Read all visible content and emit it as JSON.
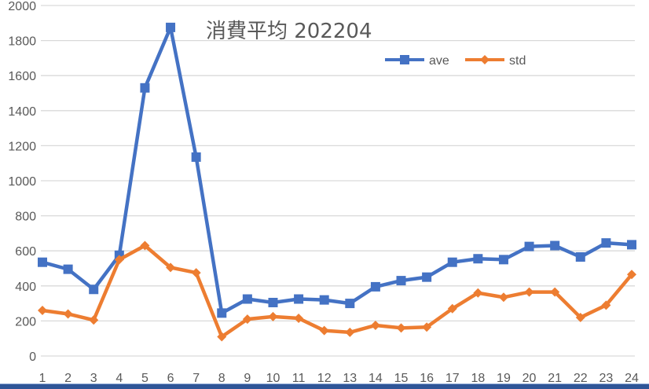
{
  "chart_data": {
    "type": "line",
    "title": "消費平均 202204",
    "xlabel": "",
    "ylabel": "",
    "categories": [
      "1",
      "2",
      "3",
      "4",
      "5",
      "6",
      "7",
      "8",
      "9",
      "10",
      "11",
      "12",
      "13",
      "14",
      "15",
      "16",
      "17",
      "18",
      "19",
      "20",
      "21",
      "22",
      "23",
      "24"
    ],
    "series": [
      {
        "name": "ave",
        "color": "#4472c4",
        "marker": "square",
        "values": [
          535,
          495,
          380,
          575,
          1530,
          1875,
          1135,
          245,
          325,
          305,
          325,
          320,
          300,
          395,
          430,
          450,
          535,
          555,
          550,
          625,
          630,
          565,
          645,
          635
        ]
      },
      {
        "name": "std",
        "color": "#ed7d31",
        "marker": "diamond",
        "values": [
          260,
          240,
          205,
          550,
          630,
          505,
          475,
          110,
          210,
          225,
          215,
          145,
          135,
          175,
          160,
          165,
          270,
          360,
          335,
          365,
          365,
          220,
          290,
          465
        ]
      }
    ],
    "ylim": [
      0,
      2000
    ],
    "yticks": [
      0,
      200,
      400,
      600,
      800,
      1000,
      1200,
      1400,
      1600,
      1800,
      2000
    ],
    "grid": true,
    "legend_position": "top-right"
  },
  "legend": {
    "ave_label": "ave",
    "std_label": "std"
  }
}
